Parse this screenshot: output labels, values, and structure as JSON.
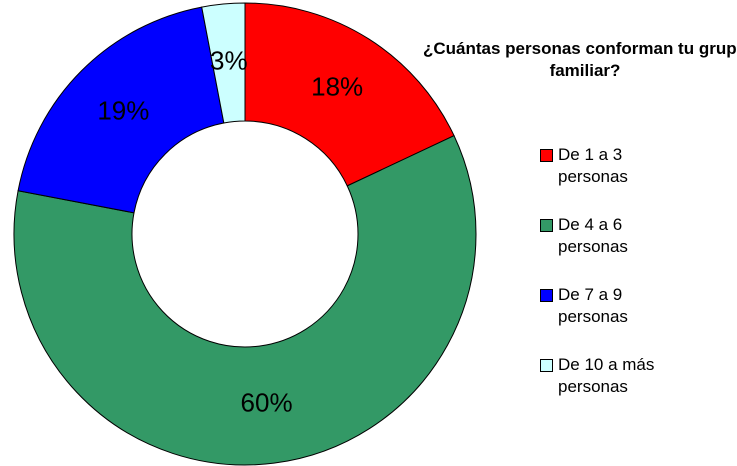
{
  "chart_data": {
    "type": "donut",
    "title": "¿Cuántas personas conforman tu grupo familiar?",
    "categories": [
      "De 1 a 3 personas",
      "De 4 a 6 personas",
      "De 7 a 9 personas",
      "De 10 a más personas"
    ],
    "values": [
      18,
      60,
      19,
      3
    ],
    "value_labels": [
      "18%",
      "60%",
      "19%",
      "3%"
    ],
    "colors": [
      "#ff0000",
      "#339966",
      "#0000ff",
      "#ccffff"
    ],
    "legend": "right"
  }
}
